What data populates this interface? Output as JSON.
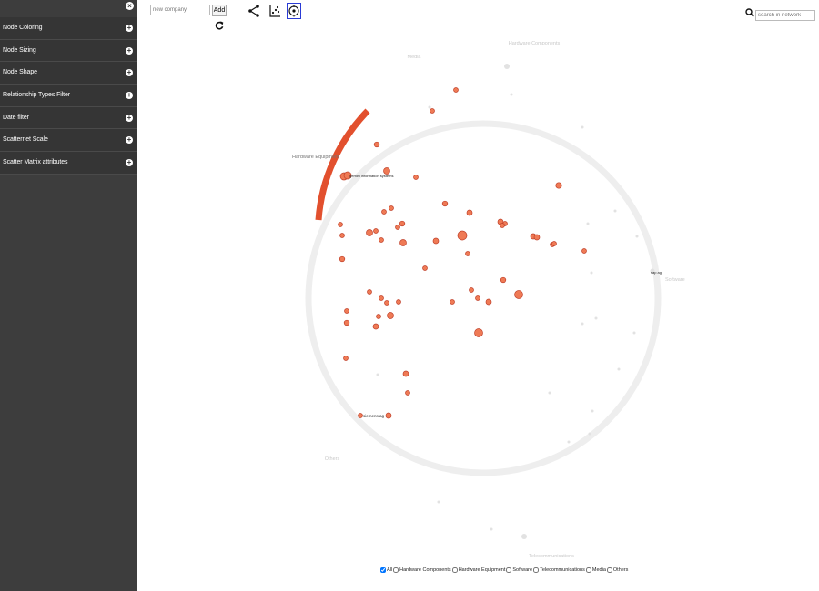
{
  "sidebar": {
    "close_icon": "close-icon",
    "items": [
      {
        "label": "Node Coloring",
        "icon": "plus-icon"
      },
      {
        "label": "Node Sizing",
        "icon": "plus-icon"
      },
      {
        "label": "Node Shape",
        "icon": "plus-icon"
      },
      {
        "label": "Relationship Types Filter",
        "icon": "plus-icon"
      },
      {
        "label": "Date filter",
        "icon": "plus-icon"
      },
      {
        "label": "Scatternet Scale",
        "icon": "plus-icon"
      },
      {
        "label": "Scatter Matrix attributes",
        "icon": "plus-icon"
      }
    ]
  },
  "toolbar": {
    "company_placeholder": "new company",
    "add_label": "Add",
    "refresh_icon": "refresh-icon",
    "tools": [
      "share-network-icon",
      "scatter-chart-icon",
      "radial-layout-icon"
    ],
    "active_tool": "radial-layout-icon"
  },
  "search": {
    "placeholder": "search in network",
    "icon": "search-icon"
  },
  "network": {
    "sectors": [
      "Hardware Components",
      "Media",
      "Hardware Equipment",
      "Software",
      "Others",
      "Telecommunications"
    ],
    "node_labels": [
      "gemini information systems",
      "siemens ag",
      "sap ag"
    ],
    "colors": {
      "node": "#ef7a55",
      "node_stroke": "#c0402a",
      "highlight_arc": "#e2502e",
      "ring": "#f0f0f0"
    }
  },
  "legend": {
    "items": [
      {
        "label": "All",
        "checked": true
      },
      {
        "label": "Hardware Components",
        "checked": false
      },
      {
        "label": "Hardware Equipment",
        "checked": false
      },
      {
        "label": "Software",
        "checked": false
      },
      {
        "label": "Telecommunications",
        "checked": false
      },
      {
        "label": "Media",
        "checked": false
      },
      {
        "label": "Others",
        "checked": false
      }
    ]
  }
}
